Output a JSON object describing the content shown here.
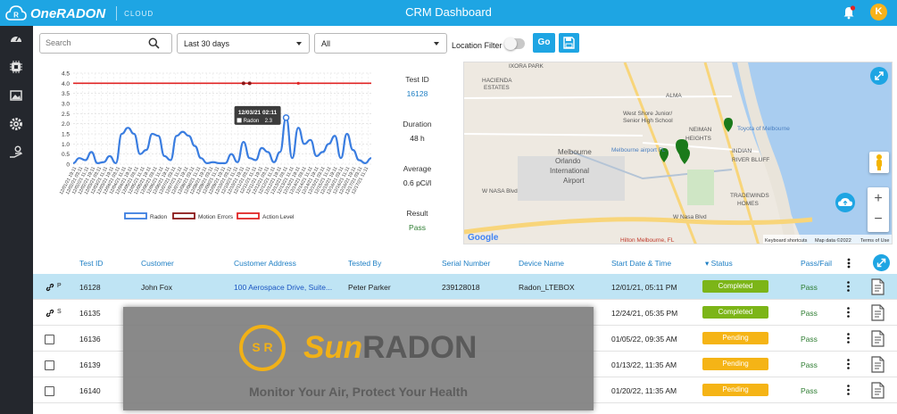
{
  "app": {
    "brand": "OneRADON",
    "brand_sub": "CLOUD",
    "title": "CRM Dashboard",
    "user_initial": "K"
  },
  "colors": {
    "primary": "#1ea5e3",
    "sidebar": "#24272d",
    "completed": "#7cb518",
    "pending": "#f5b416",
    "selected_row": "#bfe4f4"
  },
  "sidebar": {
    "items": [
      {
        "icon": "speedometer-icon"
      },
      {
        "icon": "chip-icon"
      },
      {
        "icon": "image-icon"
      },
      {
        "icon": "gear-icon"
      },
      {
        "icon": "settings-hand-icon"
      }
    ]
  },
  "filters": {
    "search_placeholder": "Search",
    "date_range": "Last 30 days",
    "scope": "All",
    "location_filter_label": "Location Filter",
    "location_filter_on": false,
    "go_label": "Go"
  },
  "chart_data": {
    "type": "line",
    "ylim": [
      0,
      4.5
    ],
    "yticks": [
      "0",
      "0.5",
      "1.0",
      "1.5",
      "2.0",
      "2.5",
      "3.0",
      "3.5",
      "4.0",
      "4.5"
    ],
    "xticks": [
      "12/01/21 19:11",
      "12/02/21 03:11",
      "12/02/21 11:11",
      "12/02/21 19:11",
      "12/03/21 03:11",
      "12/03/21 11:11",
      "12/03/21 19:11",
      "12/04/21 03:11",
      "12/04/21 11:11",
      "12/04/21 19:11",
      "12/05/21 03:11",
      "12/05/21 11:11",
      "12/05/21 19:11",
      "12/06/21 03:11",
      "12/06/21 11:11",
      "12/06/21 19:11",
      "12/07/21 03:11",
      "12/07/21 11:11",
      "12/07/21 19:11",
      "12/08/21 03:11",
      "12/08/21 11:11",
      "12/08/21 19:11",
      "12/09/21 03:11",
      "12/09/21 11:11",
      "12/09/21 19:11",
      "12/10/21 03:11",
      "12/10/21 11:11",
      "12/10/21 19:11",
      "12/11/21 03:11",
      "12/11/21 11:11",
      "12/11/21 19:11",
      "12/12/21 03:11",
      "12/12/21 11:11",
      "12/12/21 19:11",
      "12/13/21 03:11",
      "12/13/21 11:11",
      "12/13/21 19:11",
      "12/14/21 03:11",
      "12/14/21 11:11",
      "12/14/21 19:11",
      "12/15/21 03:11",
      "12/15/21 11:11",
      "12/15/21 19:11",
      "12/16/21 03:11",
      "12/16/21 11:11",
      "12/16/21 19:11",
      "12/17/21 03:11",
      "12/17/21 11:11"
    ],
    "series": [
      {
        "name": "Radon",
        "color": "#3a7de0",
        "values": [
          0.05,
          0.3,
          0.2,
          0.6,
          0.05,
          0.1,
          0.4,
          0.05,
          1.5,
          1.8,
          1.5,
          0.5,
          0.7,
          1.5,
          1.4,
          0.4,
          0.2,
          1.4,
          1.6,
          1.4,
          0.9,
          0.3,
          0.05,
          0.1,
          0.05,
          0.05,
          0.5,
          0.1,
          1.1,
          0.3,
          0.2,
          0.8,
          0.6,
          0.1,
          0.6,
          2.3,
          0.3,
          1.8,
          1.0,
          1.2,
          0.4,
          0.6,
          1.0,
          1.4,
          0.3,
          1.5,
          0.7,
          0.2,
          0.05,
          0.3
        ]
      },
      {
        "name": "Motion Errors",
        "color": "#8a1818",
        "points": [
          {
            "x": 28,
            "y": 4.0
          },
          {
            "x": 29,
            "y": 4.0
          }
        ]
      },
      {
        "name": "Action Level",
        "color": "#e02424",
        "value": 4.0
      }
    ],
    "tooltip": {
      "label": "12/03/21 02:11",
      "series": "Radon",
      "value": "2.3"
    }
  },
  "test_info": {
    "test_id_label": "Test ID",
    "test_id": "16128",
    "duration_label": "Duration",
    "duration": "48 h",
    "average_label": "Average",
    "average": "0.6 pCi/l",
    "result_label": "Result",
    "result": "Pass"
  },
  "map": {
    "labels": [
      {
        "text": "IXORA PARK"
      },
      {
        "text": "HACIENDA"
      },
      {
        "text": "ESTATES"
      },
      {
        "text": "West Shore Junior/"
      },
      {
        "text": "Senior High School"
      },
      {
        "text": "Melbourne"
      },
      {
        "text": "Orlando"
      },
      {
        "text": "International"
      },
      {
        "text": "Airport"
      },
      {
        "text": "Melbourne airport FL"
      },
      {
        "text": "NEIMAN"
      },
      {
        "text": "HEIGHTS"
      },
      {
        "text": "INDIAN"
      },
      {
        "text": "RIVER BLUFF"
      },
      {
        "text": "TRADEWINDS"
      },
      {
        "text": "HOMES"
      },
      {
        "text": "Toyota of Melbourne"
      },
      {
        "text": "W NASA Blvd"
      },
      {
        "text": "Hilton Melbourne, FL"
      },
      {
        "text": "ALMA"
      },
      {
        "text": "W Nasa Blvd"
      }
    ],
    "attribution": [
      "Keyboard shortcuts",
      "Map data ©2022",
      "Terms of Use"
    ],
    "google": "Google"
  },
  "table": {
    "columns": [
      "Test ID",
      "Customer",
      "Customer Address",
      "Tested By",
      "Serial Number",
      "Device Name",
      "Start Date & Time",
      "Status",
      "Pass/Fail"
    ],
    "rows": [
      {
        "mark": "P",
        "test_id": "16128",
        "customer": "John Fox",
        "address": "100 Aerospace Drive, Suite...",
        "tested_by": "Peter Parker",
        "serial": "239128018",
        "device": "Radon_LTEBOX",
        "start": "12/01/21, 05:11 PM",
        "status": "Completed",
        "result": "Pass"
      },
      {
        "mark": "S",
        "test_id": "16135",
        "customer": "",
        "address": "",
        "tested_by": "",
        "serial": "",
        "device": "",
        "start": "12/24/21, 05:35 PM",
        "status": "Completed",
        "result": "Pass"
      },
      {
        "mark": "",
        "test_id": "16136",
        "customer": "",
        "address": "",
        "tested_by": "",
        "serial": "",
        "device": "",
        "start": "01/05/22, 09:35 AM",
        "status": "Pending",
        "result": "Pass"
      },
      {
        "mark": "",
        "test_id": "16139",
        "customer": "",
        "address": "",
        "tested_by": "",
        "serial": "",
        "device": "",
        "start": "01/13/22, 11:35 AM",
        "status": "Pending",
        "result": "Pass"
      },
      {
        "mark": "",
        "test_id": "16140",
        "customer": "",
        "address": "",
        "tested_by": "",
        "serial": "",
        "device": "",
        "start": "01/20/22, 11:35 AM",
        "status": "Pending",
        "result": "Pass"
      }
    ]
  },
  "overlay": {
    "logo_letters": "S R",
    "brand_sun": "Sun",
    "brand_radon": "RADON",
    "tagline": "Monitor Your Air, Protect Your Health"
  }
}
